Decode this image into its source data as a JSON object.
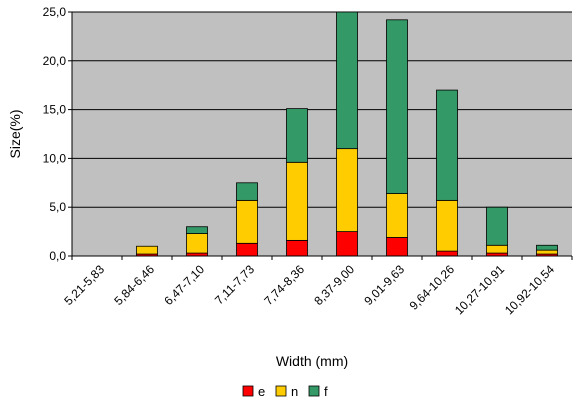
{
  "chart_data": {
    "type": "bar",
    "stacked": true,
    "categories": [
      "5,21-5,83",
      "5,84-6,46",
      "6,47-7,10",
      "7,11-7,73",
      "7,74-8,36",
      "8,37-9,00",
      "9,01-9,63",
      "9,64-10,26",
      "10,27-10,91",
      "10,92-10,54"
    ],
    "series": [
      {
        "name": "e",
        "color": "#ff0000",
        "values": [
          0,
          0.2,
          0.3,
          1.3,
          1.6,
          2.5,
          1.9,
          0.5,
          0.3,
          0.2
        ]
      },
      {
        "name": "n",
        "color": "#ffcc00",
        "values": [
          0,
          0.8,
          2.0,
          4.4,
          8.0,
          8.5,
          4.5,
          5.2,
          0.8,
          0.4
        ]
      },
      {
        "name": "f",
        "color": "#339966",
        "values": [
          0,
          0,
          0.7,
          1.8,
          5.5,
          14.0,
          17.8,
          11.3,
          3.9,
          0.5
        ]
      }
    ],
    "title": "",
    "xlabel": "Width (mm)",
    "ylabel": "Size(%)",
    "ylim": [
      0,
      25
    ],
    "yticks": [
      "0,0",
      "5,0",
      "10,0",
      "15,0",
      "20,0",
      "25,0"
    ],
    "plot_background": "#c0c0c0",
    "grid": true,
    "legend_position": "bottom"
  }
}
